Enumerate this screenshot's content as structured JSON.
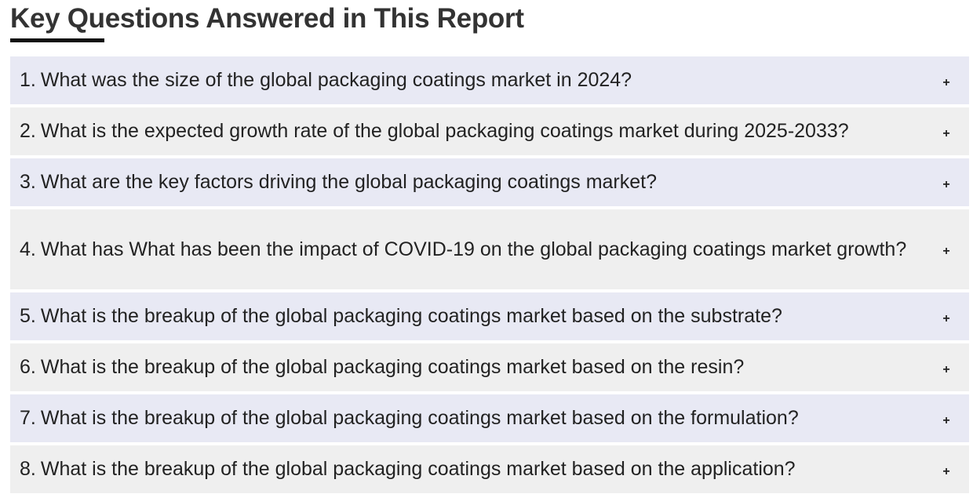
{
  "section": {
    "title": "Key Questions Answered in This Report"
  },
  "faq": {
    "toggle_symbol": "+",
    "items": [
      {
        "number": "1.",
        "question": "What was the size of the global packaging coatings market in 2024?"
      },
      {
        "number": "2.",
        "question": "What is the expected growth rate of the global packaging coatings market during 2025-2033?"
      },
      {
        "number": "3.",
        "question": "What are the key factors driving the global packaging coatings market?"
      },
      {
        "number": "4.",
        "question": "What has What has been the impact of COVID-19 on the global packaging coatings market growth?"
      },
      {
        "number": "5.",
        "question": "What is the breakup of the global packaging coatings market based on the substrate?"
      },
      {
        "number": "6.",
        "question": "What is the breakup of the global packaging coatings market based on the resin?"
      },
      {
        "number": "7.",
        "question": "What is the breakup of the global packaging coatings market based on the formulation?"
      },
      {
        "number": "8.",
        "question": "What is the breakup of the global packaging coatings market based on the application?"
      }
    ]
  }
}
